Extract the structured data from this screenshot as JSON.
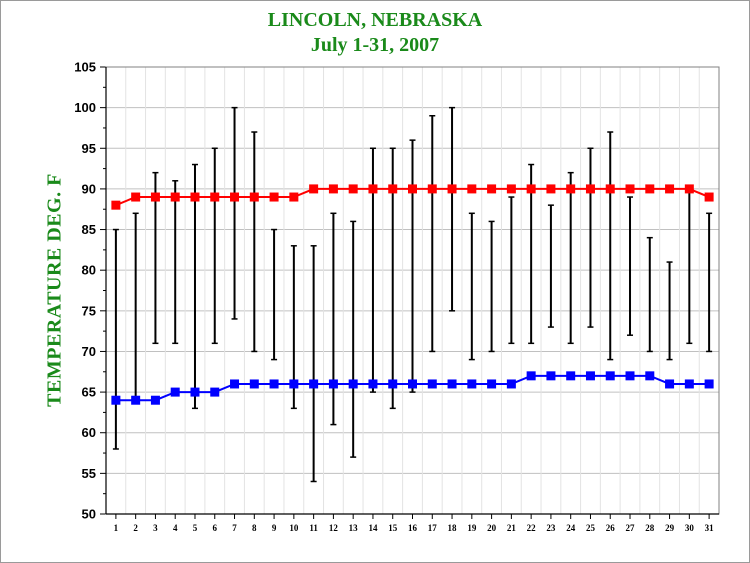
{
  "title": "LINCOLN, NEBRASKA",
  "subtitle": "July 1-31,  2007",
  "colors": {
    "title": "#1a8a1a",
    "normal_high": "#ff0000",
    "normal_low": "#0000ff",
    "range": "#000000",
    "grid": "#c0c0c0"
  },
  "chart_data": {
    "type": "line",
    "title": "LINCOLN, NEBRASKA",
    "subtitle": "July 1-31,  2007",
    "xlabel": "",
    "ylabel": "TEMPERATURE DEG. F",
    "ylim": [
      50,
      105
    ],
    "yticks": [
      50,
      55,
      60,
      65,
      70,
      75,
      80,
      85,
      90,
      95,
      100,
      105
    ],
    "grid": true,
    "legend": "none",
    "x": [
      1,
      2,
      3,
      4,
      5,
      6,
      7,
      8,
      9,
      10,
      11,
      12,
      13,
      14,
      15,
      16,
      17,
      18,
      19,
      20,
      21,
      22,
      23,
      24,
      25,
      26,
      27,
      28,
      29,
      30,
      31
    ],
    "series": [
      {
        "values": [
          88,
          89,
          89,
          89,
          89,
          89,
          89,
          89,
          89,
          89,
          90,
          90,
          90,
          90,
          90,
          90,
          90,
          90,
          90,
          90,
          90,
          90,
          90,
          90,
          90,
          90,
          90,
          90,
          90,
          90,
          89
        ],
        "color": "#ff0000",
        "marker": "square"
      },
      {
        "values": [
          64,
          64,
          64,
          65,
          65,
          65,
          66,
          66,
          66,
          66,
          66,
          66,
          66,
          66,
          66,
          66,
          66,
          66,
          66,
          66,
          66,
          67,
          67,
          67,
          67,
          67,
          67,
          67,
          66,
          66,
          66
        ],
        "color": "#0000ff",
        "marker": "square"
      }
    ],
    "ranges": {
      "high": [
        85,
        87,
        92,
        91,
        93,
        95,
        100,
        97,
        85,
        83,
        83,
        87,
        86,
        95,
        95,
        96,
        99,
        100,
        87,
        86,
        89,
        93,
        88,
        92,
        95,
        97,
        89,
        84,
        81,
        90,
        87
      ],
      "low": [
        58,
        64,
        71,
        71,
        63,
        71,
        74,
        70,
        69,
        63,
        54,
        61,
        57,
        65,
        63,
        65,
        70,
        75,
        69,
        70,
        71,
        71,
        73,
        71,
        73,
        69,
        72,
        70,
        69,
        71,
        70
      ],
      "color": "#000000"
    }
  }
}
